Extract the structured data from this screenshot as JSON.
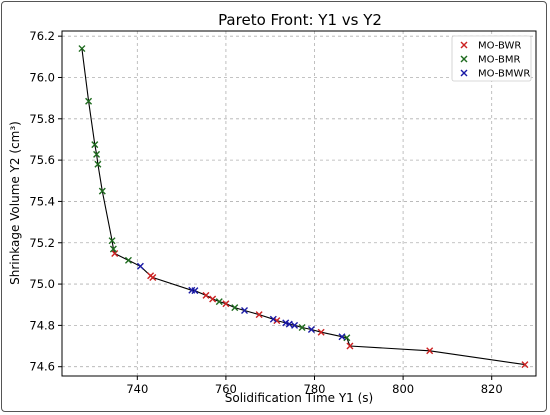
{
  "chart_data": {
    "type": "scatter",
    "title": "Pareto Front: Y1 vs Y2",
    "xlabel": "Solidification Time Y1 (s)",
    "ylabel": "Shrinkage Volume Y2 (cm³)",
    "xlim": [
      723,
      830
    ],
    "ylim": [
      74.555,
      76.225
    ],
    "xticks": [
      740,
      760,
      780,
      800,
      820
    ],
    "yticks": [
      74.6,
      74.8,
      75.0,
      75.2,
      75.4,
      75.6,
      75.8,
      76.0,
      76.2
    ],
    "xtick_labels": [
      "740",
      "760",
      "780",
      "800",
      "820"
    ],
    "ytick_labels": [
      "74.6",
      "74.8",
      "75.0",
      "75.2",
      "75.4",
      "75.6",
      "75.8",
      "76.0",
      "76.2"
    ],
    "grid": true,
    "legend_position": "top-right",
    "front_line": {
      "color": "#000000",
      "points": [
        [
          727.5,
          76.14
        ],
        [
          729.0,
          75.885
        ],
        [
          730.4,
          75.675
        ],
        [
          730.8,
          75.628
        ],
        [
          731.1,
          75.58
        ],
        [
          732.1,
          75.45
        ],
        [
          734.3,
          75.21
        ],
        [
          734.6,
          75.17
        ],
        [
          734.9,
          75.148
        ],
        [
          738.0,
          75.115
        ],
        [
          740.7,
          75.086
        ],
        [
          743.0,
          75.04
        ],
        [
          743.5,
          75.032
        ],
        [
          752.3,
          74.97
        ],
        [
          753.0,
          74.968
        ],
        [
          755.5,
          74.945
        ],
        [
          757.0,
          74.928
        ],
        [
          758.5,
          74.915
        ],
        [
          760.0,
          74.905
        ],
        [
          762.0,
          74.886
        ],
        [
          764.2,
          74.872
        ],
        [
          767.5,
          74.852
        ],
        [
          770.7,
          74.83
        ],
        [
          771.5,
          74.823
        ],
        [
          773.5,
          74.812
        ],
        [
          774.3,
          74.806
        ],
        [
          775.5,
          74.8
        ],
        [
          777.2,
          74.79
        ],
        [
          779.3,
          74.78
        ],
        [
          781.5,
          74.767
        ],
        [
          786.2,
          74.745
        ],
        [
          787.3,
          74.74
        ],
        [
          788.0,
          74.7
        ],
        [
          806.0,
          74.677
        ],
        [
          827.5,
          74.61
        ]
      ]
    },
    "series": [
      {
        "name": "MO-BWR",
        "color": "#cc2222",
        "points": [
          [
            734.9,
            75.148
          ],
          [
            743.0,
            75.04
          ],
          [
            743.5,
            75.032
          ],
          [
            755.5,
            74.945
          ],
          [
            757.0,
            74.928
          ],
          [
            760.0,
            74.905
          ],
          [
            767.5,
            74.852
          ],
          [
            771.5,
            74.823
          ],
          [
            781.5,
            74.767
          ],
          [
            788.0,
            74.7
          ],
          [
            806.0,
            74.677
          ],
          [
            827.5,
            74.61
          ]
        ]
      },
      {
        "name": "MO-BMR",
        "color": "#1e6b1e",
        "points": [
          [
            727.5,
            76.14
          ],
          [
            729.0,
            75.885
          ],
          [
            730.4,
            75.675
          ],
          [
            730.8,
            75.628
          ],
          [
            731.1,
            75.58
          ],
          [
            732.1,
            75.45
          ],
          [
            734.3,
            75.21
          ],
          [
            734.6,
            75.17
          ],
          [
            738.0,
            75.115
          ],
          [
            758.5,
            74.915
          ],
          [
            762.0,
            74.886
          ],
          [
            777.2,
            74.79
          ],
          [
            787.3,
            74.74
          ]
        ]
      },
      {
        "name": "MO-BMWR",
        "color": "#1a1aa6",
        "points": [
          [
            740.7,
            75.086
          ],
          [
            752.3,
            74.97
          ],
          [
            753.0,
            74.968
          ],
          [
            764.2,
            74.872
          ],
          [
            770.7,
            74.83
          ],
          [
            773.5,
            74.812
          ],
          [
            774.3,
            74.806
          ],
          [
            775.5,
            74.8
          ],
          [
            779.3,
            74.78
          ],
          [
            786.2,
            74.745
          ]
        ]
      }
    ]
  }
}
